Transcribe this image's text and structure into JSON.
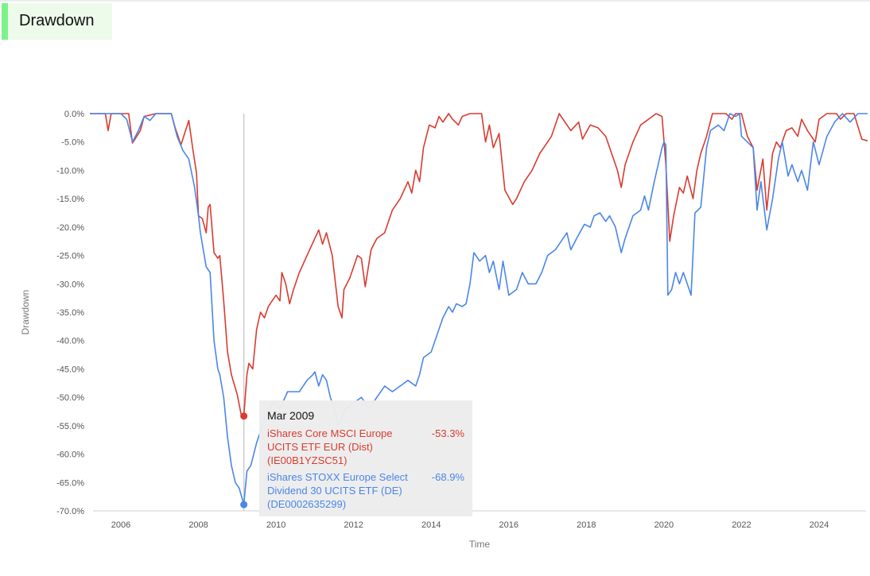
{
  "header": {
    "title": "Drawdown",
    "accent": "#7df28a"
  },
  "chart_data": {
    "type": "line",
    "ylabel": "Drawdown",
    "xlabel": "Time",
    "ylim": [
      -70,
      0
    ],
    "xlim": [
      2005.2,
      2025.25
    ],
    "y_ticks": [
      0,
      -5,
      -10,
      -15,
      -20,
      -25,
      -30,
      -35,
      -40,
      -45,
      -50,
      -55,
      -60,
      -65,
      -70
    ],
    "y_tick_labels": [
      "0.0%",
      "-5.0%",
      "-10.0%",
      "-15.0%",
      "-20.0%",
      "-25.0%",
      "-30.0%",
      "-35.0%",
      "-40.0%",
      "-45.0%",
      "-50.0%",
      "-55.0%",
      "-60.0%",
      "-65.0%",
      "-70.0%"
    ],
    "x_ticks": [
      2006,
      2008,
      2010,
      2012,
      2014,
      2016,
      2018,
      2020,
      2022,
      2024
    ],
    "x_tick_labels": [
      "2006",
      "2008",
      "2010",
      "2012",
      "2014",
      "2016",
      "2018",
      "2020",
      "2022",
      "2024"
    ],
    "grid": false,
    "crosshair_x": 2009.17,
    "series": [
      {
        "name": "iShares Core MSCI Europe UCITS ETF EUR (Dist) (IE00B1YZSC51)",
        "color": "#d93b30",
        "points": [
          [
            2005.2,
            0
          ],
          [
            2005.6,
            0
          ],
          [
            2005.67,
            -3
          ],
          [
            2005.75,
            0
          ],
          [
            2006.2,
            0
          ],
          [
            2006.3,
            -5.2
          ],
          [
            2006.5,
            -3
          ],
          [
            2006.6,
            -0.5
          ],
          [
            2006.9,
            0
          ],
          [
            2007.3,
            0
          ],
          [
            2007.4,
            -2.5
          ],
          [
            2007.55,
            -5.5
          ],
          [
            2007.75,
            -1.2
          ],
          [
            2007.85,
            -6
          ],
          [
            2007.95,
            -10.5
          ],
          [
            2008.0,
            -18
          ],
          [
            2008.1,
            -18.5
          ],
          [
            2008.2,
            -21
          ],
          [
            2008.25,
            -16.5
          ],
          [
            2008.3,
            -16
          ],
          [
            2008.4,
            -24.5
          ],
          [
            2008.5,
            -25.5
          ],
          [
            2008.55,
            -25
          ],
          [
            2008.65,
            -33
          ],
          [
            2008.75,
            -42
          ],
          [
            2008.85,
            -46
          ],
          [
            2009.0,
            -49.5
          ],
          [
            2009.1,
            -53
          ],
          [
            2009.17,
            -53.3
          ],
          [
            2009.25,
            -46
          ],
          [
            2009.3,
            -44
          ],
          [
            2009.4,
            -45
          ],
          [
            2009.5,
            -38
          ],
          [
            2009.6,
            -35
          ],
          [
            2009.7,
            -36
          ],
          [
            2009.8,
            -34
          ],
          [
            2009.9,
            -33
          ],
          [
            2010.0,
            -32
          ],
          [
            2010.1,
            -33
          ],
          [
            2010.15,
            -28
          ],
          [
            2010.25,
            -30
          ],
          [
            2010.35,
            -33.5
          ],
          [
            2010.45,
            -31
          ],
          [
            2010.6,
            -28
          ],
          [
            2010.8,
            -25
          ],
          [
            2011.0,
            -22
          ],
          [
            2011.1,
            -20.5
          ],
          [
            2011.2,
            -23
          ],
          [
            2011.3,
            -21
          ],
          [
            2011.45,
            -25
          ],
          [
            2011.6,
            -34
          ],
          [
            2011.7,
            -36
          ],
          [
            2011.75,
            -31
          ],
          [
            2011.9,
            -29
          ],
          [
            2012.1,
            -25
          ],
          [
            2012.2,
            -25.5
          ],
          [
            2012.3,
            -30.5
          ],
          [
            2012.45,
            -24
          ],
          [
            2012.6,
            -22
          ],
          [
            2012.8,
            -21
          ],
          [
            2013.0,
            -17
          ],
          [
            2013.2,
            -15
          ],
          [
            2013.4,
            -12
          ],
          [
            2013.5,
            -14
          ],
          [
            2013.6,
            -10
          ],
          [
            2013.7,
            -12
          ],
          [
            2013.8,
            -6
          ],
          [
            2013.95,
            -2
          ],
          [
            2014.1,
            -2.5
          ],
          [
            2014.2,
            -0.5
          ],
          [
            2014.3,
            -1.5
          ],
          [
            2014.45,
            0
          ],
          [
            2014.55,
            -1
          ],
          [
            2014.7,
            -2
          ],
          [
            2014.8,
            -0.5
          ],
          [
            2015.0,
            0
          ],
          [
            2015.3,
            0
          ],
          [
            2015.4,
            -5
          ],
          [
            2015.5,
            -2
          ],
          [
            2015.6,
            -6
          ],
          [
            2015.75,
            -3.5
          ],
          [
            2015.9,
            -13.5
          ],
          [
            2016.1,
            -16
          ],
          [
            2016.2,
            -15
          ],
          [
            2016.4,
            -12
          ],
          [
            2016.6,
            -10
          ],
          [
            2016.8,
            -7
          ],
          [
            2016.9,
            -6
          ],
          [
            2017.1,
            -4
          ],
          [
            2017.3,
            0
          ],
          [
            2017.6,
            -3
          ],
          [
            2017.8,
            -1.5
          ],
          [
            2017.9,
            -4.5
          ],
          [
            2018.1,
            -2
          ],
          [
            2018.3,
            -2.5
          ],
          [
            2018.5,
            -4
          ],
          [
            2018.6,
            -6
          ],
          [
            2018.7,
            -8
          ],
          [
            2018.8,
            -10
          ],
          [
            2018.9,
            -13
          ],
          [
            2019.0,
            -9
          ],
          [
            2019.2,
            -5
          ],
          [
            2019.4,
            -2
          ],
          [
            2019.6,
            -1
          ],
          [
            2019.8,
            0
          ],
          [
            2019.95,
            -0.5
          ],
          [
            2020.05,
            -9
          ],
          [
            2020.15,
            -22.5
          ],
          [
            2020.25,
            -18
          ],
          [
            2020.4,
            -13
          ],
          [
            2020.5,
            -14
          ],
          [
            2020.6,
            -11
          ],
          [
            2020.75,
            -15
          ],
          [
            2020.85,
            -10
          ],
          [
            2020.95,
            -7
          ],
          [
            2021.1,
            -4
          ],
          [
            2021.25,
            0
          ],
          [
            2021.6,
            0
          ],
          [
            2021.75,
            -1
          ],
          [
            2021.85,
            0
          ],
          [
            2022.0,
            0
          ],
          [
            2022.15,
            -4
          ],
          [
            2022.3,
            -6
          ],
          [
            2022.4,
            -13.5
          ],
          [
            2022.55,
            -8
          ],
          [
            2022.65,
            -17
          ],
          [
            2022.8,
            -7
          ],
          [
            2022.9,
            -5
          ],
          [
            2023.0,
            -6
          ],
          [
            2023.15,
            -3
          ],
          [
            2023.3,
            -2.5
          ],
          [
            2023.45,
            -4
          ],
          [
            2023.55,
            -1
          ],
          [
            2023.7,
            -3
          ],
          [
            2023.9,
            -5
          ],
          [
            2024.0,
            -1
          ],
          [
            2024.2,
            0
          ],
          [
            2024.45,
            0
          ],
          [
            2024.55,
            -1
          ],
          [
            2024.7,
            0
          ],
          [
            2024.9,
            0
          ],
          [
            2025.1,
            -4.5
          ],
          [
            2025.25,
            -4.8
          ]
        ]
      },
      {
        "name": "iShares STOXX Europe Select Dividend 30 UCITS ETF (DE) (DE0002635299)",
        "color": "#4a86e8",
        "points": [
          [
            2005.2,
            0
          ],
          [
            2005.6,
            0
          ],
          [
            2005.8,
            0
          ],
          [
            2006.0,
            0
          ],
          [
            2006.15,
            -1
          ],
          [
            2006.3,
            -5
          ],
          [
            2006.45,
            -3
          ],
          [
            2006.6,
            -0.5
          ],
          [
            2006.75,
            -1.2
          ],
          [
            2006.9,
            0
          ],
          [
            2007.3,
            0
          ],
          [
            2007.45,
            -4
          ],
          [
            2007.6,
            -6.5
          ],
          [
            2007.75,
            -8
          ],
          [
            2007.9,
            -13
          ],
          [
            2008.0,
            -18
          ],
          [
            2008.05,
            -21
          ],
          [
            2008.2,
            -27
          ],
          [
            2008.3,
            -28
          ],
          [
            2008.4,
            -40
          ],
          [
            2008.5,
            -45
          ],
          [
            2008.55,
            -46
          ],
          [
            2008.65,
            -50
          ],
          [
            2008.75,
            -57
          ],
          [
            2008.85,
            -62
          ],
          [
            2008.95,
            -65
          ],
          [
            2009.05,
            -66
          ],
          [
            2009.17,
            -68.9
          ],
          [
            2009.25,
            -63
          ],
          [
            2009.35,
            -62
          ],
          [
            2009.5,
            -58
          ],
          [
            2009.7,
            -54
          ],
          [
            2009.9,
            -51
          ],
          [
            2010.1,
            -52
          ],
          [
            2010.3,
            -49
          ],
          [
            2010.6,
            -49
          ],
          [
            2010.8,
            -47
          ],
          [
            2010.95,
            -46
          ],
          [
            2011.0,
            -45.5
          ],
          [
            2011.1,
            -48
          ],
          [
            2011.2,
            -46
          ],
          [
            2011.3,
            -47
          ],
          [
            2011.4,
            -50
          ],
          [
            2011.5,
            -52
          ],
          [
            2011.6,
            -55
          ],
          [
            2011.8,
            -52
          ],
          [
            2012.0,
            -51
          ],
          [
            2012.2,
            -50
          ],
          [
            2012.4,
            -52
          ],
          [
            2012.6,
            -50
          ],
          [
            2012.8,
            -48
          ],
          [
            2013.0,
            -49
          ],
          [
            2013.2,
            -48
          ],
          [
            2013.4,
            -47
          ],
          [
            2013.6,
            -48
          ],
          [
            2013.7,
            -46
          ],
          [
            2013.8,
            -43
          ],
          [
            2014.0,
            -42
          ],
          [
            2014.15,
            -39
          ],
          [
            2014.3,
            -36
          ],
          [
            2014.45,
            -34
          ],
          [
            2014.55,
            -35
          ],
          [
            2014.65,
            -33.5
          ],
          [
            2014.8,
            -34
          ],
          [
            2014.9,
            -33.5
          ],
          [
            2015.0,
            -30
          ],
          [
            2015.1,
            -24.5
          ],
          [
            2015.25,
            -26
          ],
          [
            2015.4,
            -25
          ],
          [
            2015.5,
            -28
          ],
          [
            2015.6,
            -26
          ],
          [
            2015.75,
            -31
          ],
          [
            2015.85,
            -26
          ],
          [
            2016.0,
            -32
          ],
          [
            2016.2,
            -31
          ],
          [
            2016.35,
            -28
          ],
          [
            2016.5,
            -30
          ],
          [
            2016.7,
            -30
          ],
          [
            2016.85,
            -28
          ],
          [
            2017.0,
            -25
          ],
          [
            2017.2,
            -24
          ],
          [
            2017.4,
            -22
          ],
          [
            2017.5,
            -21
          ],
          [
            2017.6,
            -24
          ],
          [
            2017.75,
            -22
          ],
          [
            2017.95,
            -19.5
          ],
          [
            2018.1,
            -20
          ],
          [
            2018.2,
            -18
          ],
          [
            2018.35,
            -17.5
          ],
          [
            2018.5,
            -19
          ],
          [
            2018.6,
            -18
          ],
          [
            2018.75,
            -20
          ],
          [
            2018.9,
            -24.5
          ],
          [
            2019.0,
            -22
          ],
          [
            2019.2,
            -18
          ],
          [
            2019.4,
            -17
          ],
          [
            2019.5,
            -14.5
          ],
          [
            2019.6,
            -17
          ],
          [
            2019.75,
            -12
          ],
          [
            2019.95,
            -6
          ],
          [
            2020.0,
            -5
          ],
          [
            2020.05,
            -5.5
          ],
          [
            2020.1,
            -32
          ],
          [
            2020.2,
            -31
          ],
          [
            2020.3,
            -28
          ],
          [
            2020.4,
            -30
          ],
          [
            2020.5,
            -28
          ],
          [
            2020.6,
            -30
          ],
          [
            2020.7,
            -32
          ],
          [
            2020.8,
            -17.5
          ],
          [
            2020.95,
            -16.5
          ],
          [
            2021.1,
            -6
          ],
          [
            2021.2,
            -3
          ],
          [
            2021.4,
            -2
          ],
          [
            2021.55,
            -3
          ],
          [
            2021.7,
            0
          ],
          [
            2021.85,
            -0.5
          ],
          [
            2021.95,
            0
          ],
          [
            2022.0,
            -4
          ],
          [
            2022.15,
            -5
          ],
          [
            2022.3,
            -6
          ],
          [
            2022.4,
            -17
          ],
          [
            2022.5,
            -12
          ],
          [
            2022.65,
            -20.5
          ],
          [
            2022.8,
            -15
          ],
          [
            2022.95,
            -8
          ],
          [
            2023.05,
            -5
          ],
          [
            2023.2,
            -11
          ],
          [
            2023.3,
            -9
          ],
          [
            2023.45,
            -12
          ],
          [
            2023.55,
            -10
          ],
          [
            2023.7,
            -13.5
          ],
          [
            2023.85,
            -5
          ],
          [
            2024.0,
            -9
          ],
          [
            2024.2,
            -4
          ],
          [
            2024.4,
            -1.5
          ],
          [
            2024.6,
            0
          ],
          [
            2024.8,
            -1.5
          ],
          [
            2025.0,
            0
          ],
          [
            2025.25,
            0
          ]
        ]
      }
    ],
    "tooltip": {
      "date": "Mar 2009",
      "entries": [
        {
          "label": "iShares Core MSCI Europe UCITS ETF EUR (Dist) (IE00B1YZSC51)",
          "value": "-53.3%"
        },
        {
          "label": "iShares STOXX Europe Select Dividend 30 UCITS ETF (DE) (DE0002635299)",
          "value": "-68.9%"
        }
      ]
    }
  }
}
